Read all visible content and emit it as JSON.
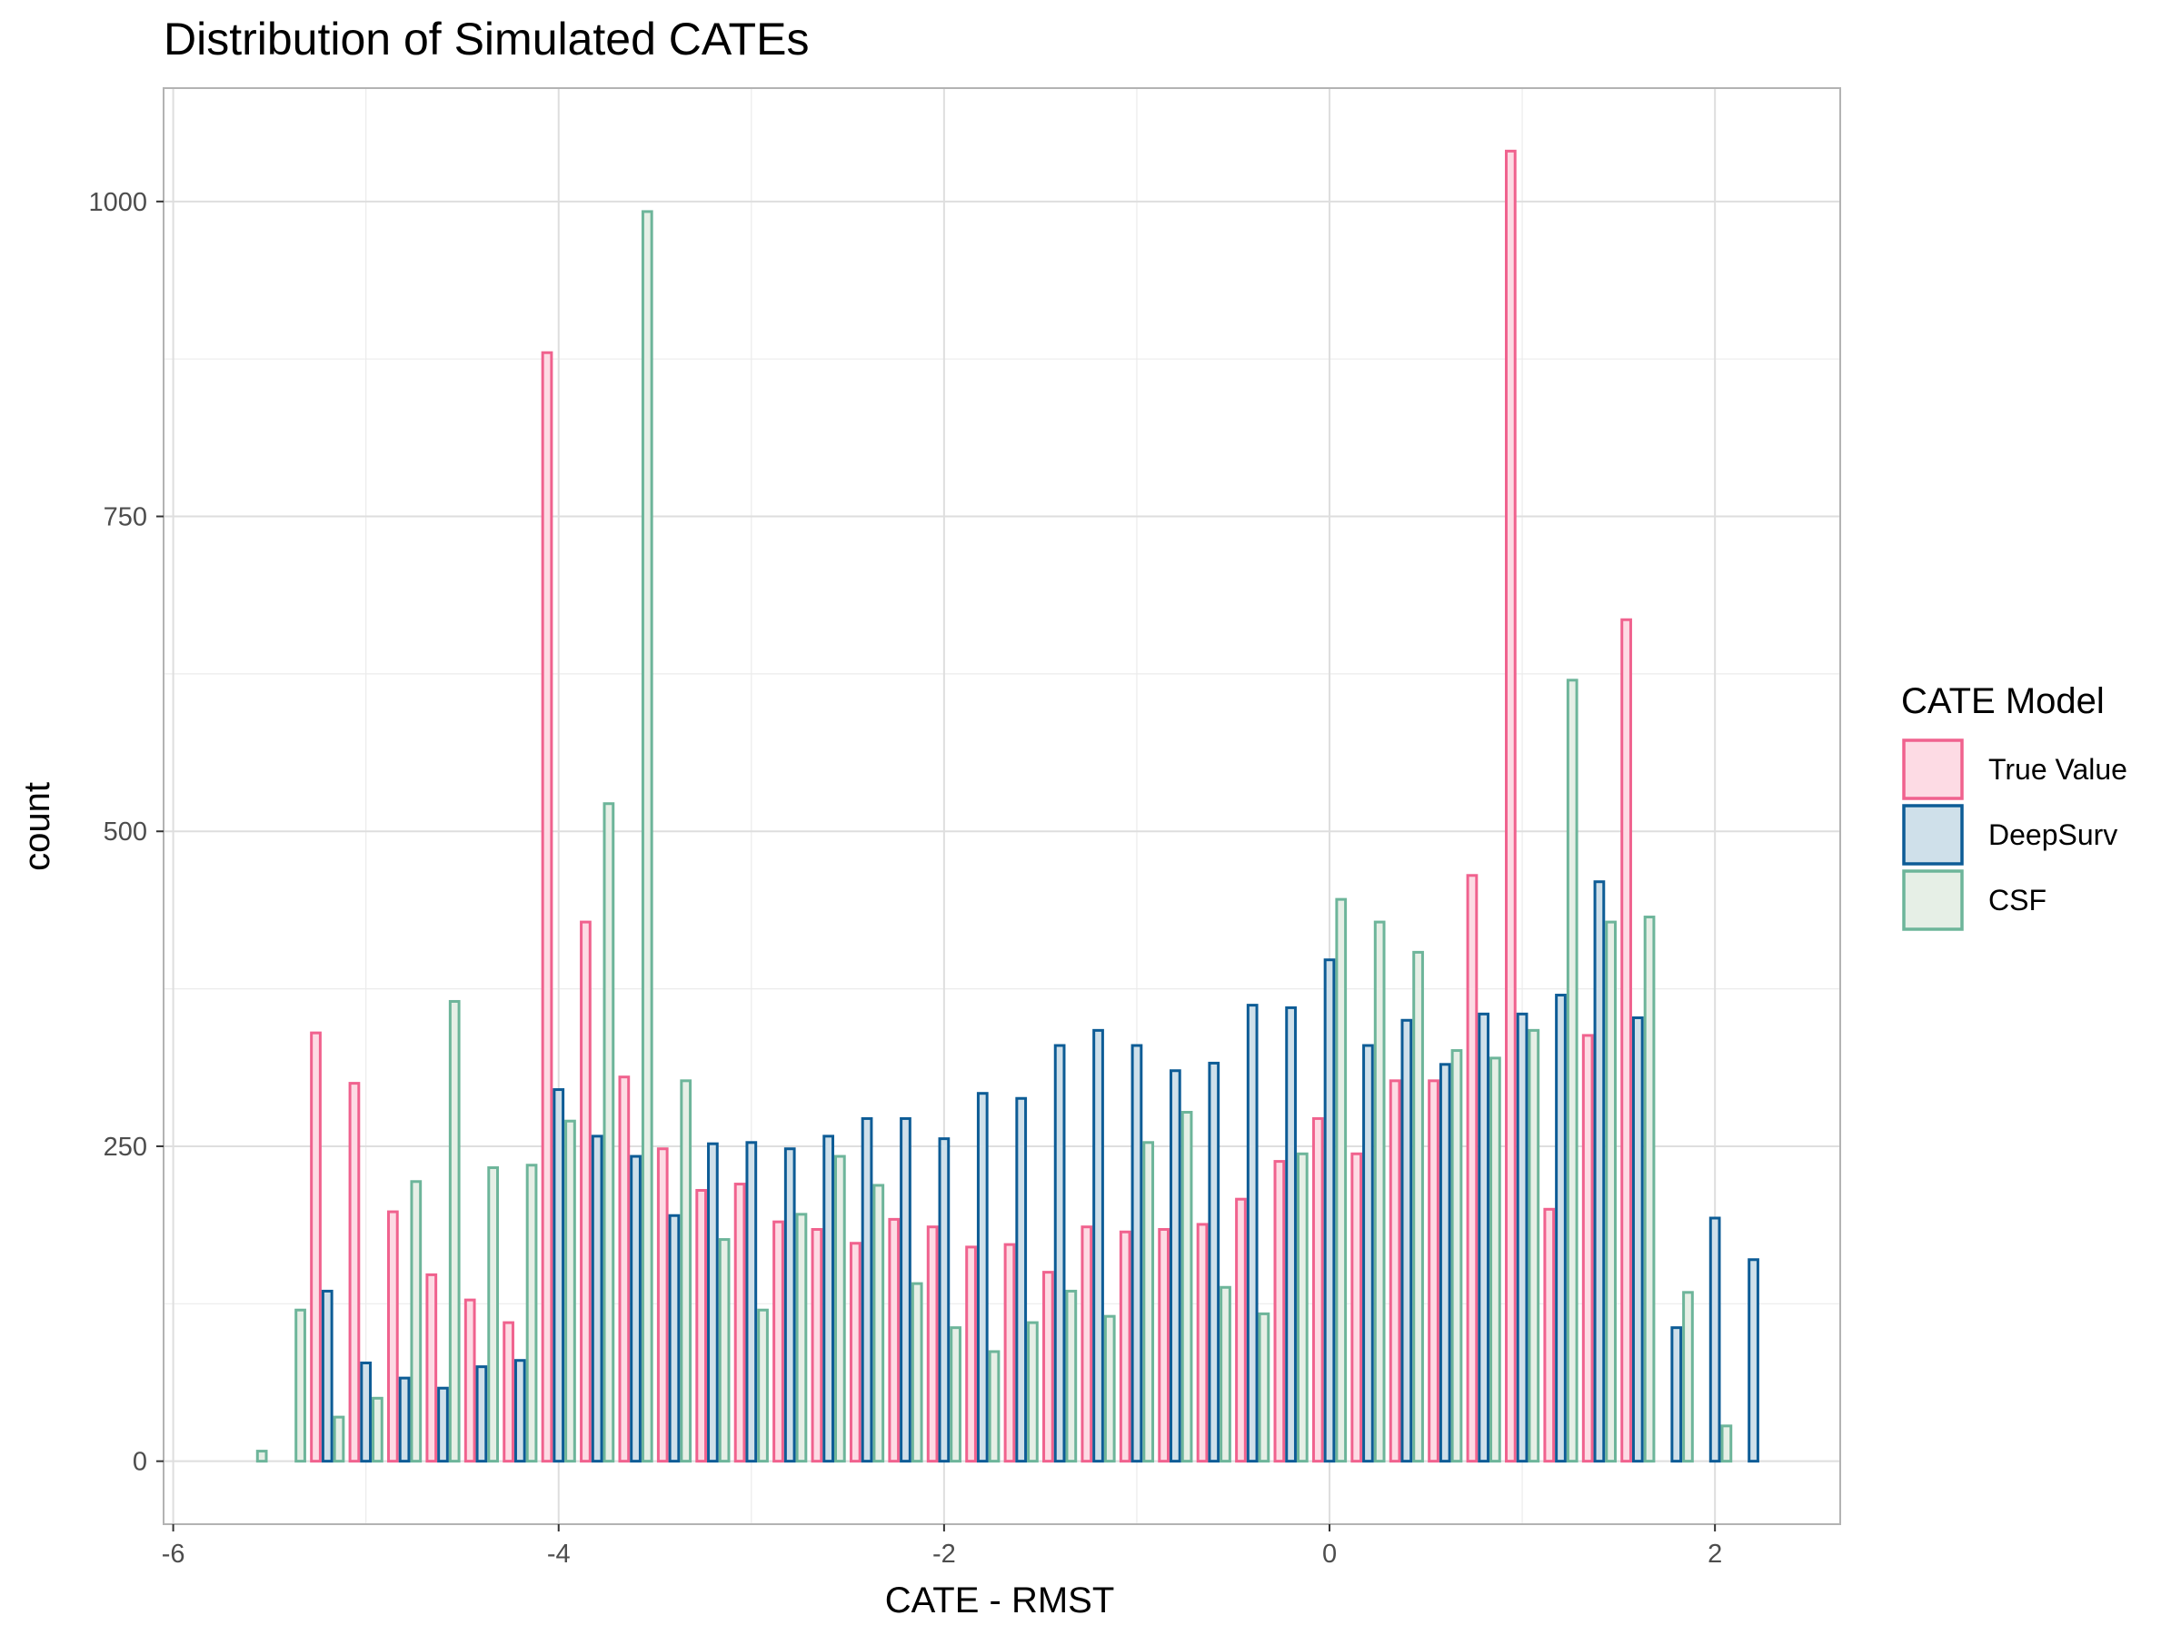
{
  "chart_data": {
    "type": "bar",
    "title": "Distribution of Simulated CATEs",
    "xlabel": "CATE - RMST",
    "ylabel": "count",
    "xlim": [
      -6.05,
      2.65
    ],
    "ylim": [
      -50,
      1090
    ],
    "x_ticks": [
      -6,
      -4,
      -2,
      0,
      2
    ],
    "x_tick_labels": [
      "-6",
      "-4",
      "-2",
      "0",
      "2"
    ],
    "y_ticks": [
      0,
      250,
      500,
      750,
      1000
    ],
    "y_tick_labels": [
      "0",
      "250",
      "500",
      "750",
      "1000"
    ],
    "grid": true,
    "bin_width": 0.2,
    "legend": {
      "title": "CATE Model",
      "position": "right"
    },
    "x": [
      -5.6,
      -5.4,
      -5.2,
      -5.0,
      -4.8,
      -4.6,
      -4.4,
      -4.2,
      -4.0,
      -3.8,
      -3.6,
      -3.4,
      -3.2,
      -3.0,
      -2.8,
      -2.6,
      -2.4,
      -2.2,
      -2.0,
      -1.8,
      -1.6,
      -1.4,
      -1.2,
      -1.0,
      -0.8,
      -0.6,
      -0.4,
      -0.2,
      0.0,
      0.2,
      0.4,
      0.6,
      0.8,
      1.0,
      1.2,
      1.4,
      1.6,
      1.8,
      2.0,
      2.2
    ],
    "series": [
      {
        "name": "True Value",
        "stroke": "#f0628e",
        "fill": "#fddbe4",
        "values": [
          0,
          0,
          340,
          300,
          198,
          148,
          128,
          110,
          880,
          428,
          305,
          248,
          215,
          220,
          190,
          184,
          173,
          192,
          186,
          170,
          172,
          150,
          186,
          182,
          184,
          188,
          208,
          238,
          272,
          244,
          302,
          302,
          465,
          1040,
          200,
          338,
          668,
          0,
          0,
          0
        ]
      },
      {
        "name": "DeepSurv",
        "stroke": "#0d5c96",
        "fill": "#cfe0ea",
        "values": [
          0,
          0,
          135,
          78,
          66,
          58,
          75,
          80,
          295,
          258,
          242,
          195,
          252,
          253,
          248,
          258,
          272,
          272,
          256,
          292,
          288,
          330,
          342,
          330,
          310,
          316,
          362,
          360,
          398,
          330,
          350,
          315,
          355,
          355,
          370,
          460,
          352,
          106,
          193,
          160
        ]
      },
      {
        "name": "CSF",
        "stroke": "#6db59a",
        "fill": "#e6efe6",
        "values": [
          8,
          120,
          35,
          50,
          222,
          365,
          233,
          235,
          270,
          522,
          992,
          302,
          176,
          120,
          196,
          242,
          219,
          141,
          106,
          87,
          110,
          135,
          115,
          253,
          277,
          138,
          117,
          244,
          446,
          428,
          404,
          326,
          320,
          342,
          620,
          428,
          432,
          134,
          28,
          0
        ]
      }
    ]
  }
}
